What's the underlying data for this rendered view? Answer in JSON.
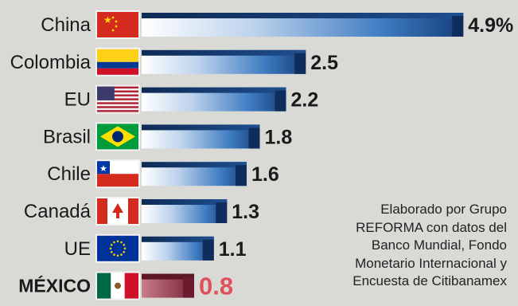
{
  "chart_data": {
    "type": "bar",
    "orientation": "horizontal",
    "categories": [
      "China",
      "Colombia",
      "EU",
      "Brasil",
      "Chile",
      "Canadá",
      "UE",
      "MÉXICO"
    ],
    "values": [
      4.9,
      2.5,
      2.2,
      1.8,
      1.6,
      1.3,
      1.1,
      0.8
    ],
    "value_labels": [
      "4.9%",
      "2.5",
      "2.2",
      "1.8",
      "1.6",
      "1.3",
      "1.1",
      "0.8"
    ],
    "flags": [
      "china-flag",
      "colombia-flag",
      "usa-flag",
      "brazil-flag",
      "chile-flag",
      "canada-flag",
      "eu-flag",
      "mexico-flag"
    ],
    "highlight_category": "MÉXICO",
    "colors": {
      "bar_blue": "#2f6fb5",
      "bar_dark": "#0f2d5c",
      "highlight_bar": "#8c2f44",
      "highlight_label": "#e0505a",
      "text": "#1a1a1a",
      "background": "#d9d9d6"
    },
    "grid": false,
    "legend": "none"
  },
  "source_note": [
    "Elaborado por Grupo",
    "REFORMA con datos del",
    "Banco Mundial, Fondo",
    "Monetario Internacional y",
    "Encuesta de Citibanamex"
  ]
}
